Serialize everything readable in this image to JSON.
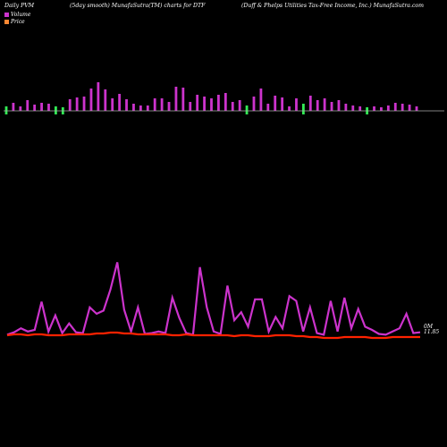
{
  "header": {
    "left": "Daily PVM",
    "center_left": "(5day smooth) MunafaSutra(TM) charts for DTF",
    "right": "(Duff & Phelps Utilities Tax-Free Income, Inc.) MunafaSutra.com"
  },
  "legend": {
    "volume": "Volume",
    "price": "Price"
  },
  "colors": {
    "volume_up": "#cc33cc",
    "volume_down": "#33ee55",
    "baseline": "#aaaaaa",
    "volume_line": "#cc33cc",
    "price_line": "#ff2200"
  },
  "chart_data": {
    "type": "bar+line",
    "volume_bars": [
      {
        "v": 5,
        "d": 1
      },
      {
        "v": 9,
        "d": 0
      },
      {
        "v": 5,
        "d": 0
      },
      {
        "v": 12,
        "d": 0
      },
      {
        "v": 7,
        "d": 0
      },
      {
        "v": 9,
        "d": 0
      },
      {
        "v": 8,
        "d": 0
      },
      {
        "v": 5,
        "d": 1
      },
      {
        "v": 4,
        "d": 1
      },
      {
        "v": 13,
        "d": 0
      },
      {
        "v": 15,
        "d": 0
      },
      {
        "v": 16,
        "d": 0
      },
      {
        "v": 25,
        "d": 0
      },
      {
        "v": 32,
        "d": 0
      },
      {
        "v": 24,
        "d": 0
      },
      {
        "v": 14,
        "d": 0
      },
      {
        "v": 19,
        "d": 0
      },
      {
        "v": 13,
        "d": 0
      },
      {
        "v": 8,
        "d": 0
      },
      {
        "v": 6,
        "d": 0
      },
      {
        "v": 6,
        "d": 0
      },
      {
        "v": 14,
        "d": 0
      },
      {
        "v": 14,
        "d": 0
      },
      {
        "v": 10,
        "d": 0
      },
      {
        "v": 27,
        "d": 0
      },
      {
        "v": 26,
        "d": 0
      },
      {
        "v": 10,
        "d": 0
      },
      {
        "v": 18,
        "d": 0
      },
      {
        "v": 16,
        "d": 0
      },
      {
        "v": 14,
        "d": 0
      },
      {
        "v": 18,
        "d": 0
      },
      {
        "v": 20,
        "d": 0
      },
      {
        "v": 10,
        "d": 0
      },
      {
        "v": 12,
        "d": 0
      },
      {
        "v": 6,
        "d": 1
      },
      {
        "v": 16,
        "d": 0
      },
      {
        "v": 25,
        "d": 0
      },
      {
        "v": 8,
        "d": 0
      },
      {
        "v": 17,
        "d": 0
      },
      {
        "v": 15,
        "d": 0
      },
      {
        "v": 5,
        "d": 0
      },
      {
        "v": 14,
        "d": 0
      },
      {
        "v": 8,
        "d": 1
      },
      {
        "v": 17,
        "d": 0
      },
      {
        "v": 12,
        "d": 0
      },
      {
        "v": 14,
        "d": 0
      },
      {
        "v": 10,
        "d": 0
      },
      {
        "v": 12,
        "d": 0
      },
      {
        "v": 8,
        "d": 0
      },
      {
        "v": 6,
        "d": 0
      },
      {
        "v": 5,
        "d": 0
      },
      {
        "v": 4,
        "d": 1
      },
      {
        "v": 5,
        "d": 0
      },
      {
        "v": 4,
        "d": 0
      },
      {
        "v": 6,
        "d": 0
      },
      {
        "v": 9,
        "d": 0
      },
      {
        "v": 8,
        "d": 0
      },
      {
        "v": 7,
        "d": 0
      },
      {
        "v": 5,
        "d": 0
      }
    ],
    "volume_line": [
      4,
      7,
      12,
      8,
      10,
      45,
      8,
      28,
      6,
      18,
      7,
      6,
      38,
      30,
      34,
      60,
      94,
      35,
      8,
      38,
      5,
      6,
      8,
      6,
      50,
      25,
      6,
      4,
      88,
      38,
      8,
      5,
      65,
      22,
      32,
      14,
      48,
      48,
      8,
      26,
      12,
      52,
      46,
      8,
      38,
      6,
      4,
      46,
      8,
      50,
      12,
      36,
      14,
      10,
      5,
      4,
      8,
      12,
      30,
      6,
      7
    ],
    "price_line": [
      5,
      6,
      6,
      5,
      6,
      6,
      5,
      5,
      5,
      6,
      6,
      6,
      6,
      7,
      7,
      8,
      8,
      7,
      7,
      6,
      6,
      6,
      6,
      6,
      5,
      5,
      6,
      5,
      5,
      5,
      5,
      5,
      5,
      4,
      5,
      5,
      4,
      4,
      4,
      5,
      5,
      5,
      4,
      4,
      3,
      3,
      2,
      2,
      2,
      3,
      3,
      3,
      3,
      2,
      2,
      2,
      3,
      3,
      3,
      3,
      3
    ],
    "right_labels": {
      "volume": "0M",
      "price": "11.85"
    }
  }
}
